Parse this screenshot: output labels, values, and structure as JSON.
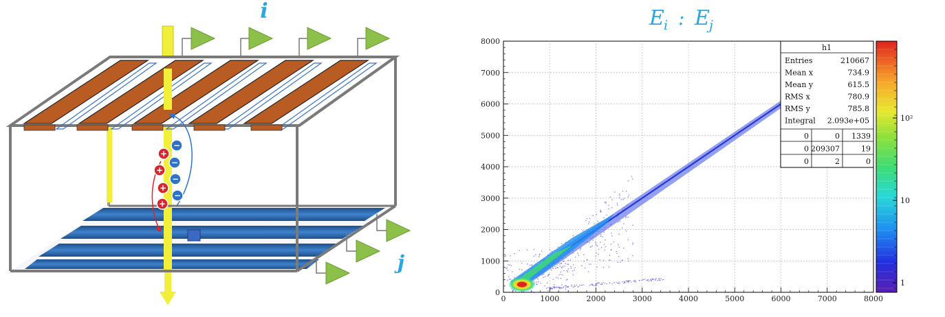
{
  "detector": {
    "label_i": "i",
    "label_j": "j",
    "colors": {
      "frame": "#7a7a7a",
      "top_strip": "#b85c24",
      "bottom_strip": "#2f6bb4",
      "beam": "#f2ef3a",
      "amplifier": "#8dc04a",
      "hole": "#d8262c",
      "electron": "#2f73c8"
    },
    "charges": {
      "plus": "+",
      "minus": "−"
    }
  },
  "plot": {
    "title": "E_i : E_j",
    "title_main_1": "E",
    "title_sub_1": "i",
    "title_sep": ":",
    "title_main_2": "E",
    "title_sub_2": "j",
    "stats": {
      "name": "h1",
      "rows": [
        {
          "label": "Entries",
          "value": "210667"
        },
        {
          "label": "Mean x",
          "value": "734.9"
        },
        {
          "label": "Mean y",
          "value": "615.5"
        },
        {
          "label": "RMS x",
          "value": "780.9"
        },
        {
          "label": "RMS y",
          "value": "785.8"
        },
        {
          "label": "Integral",
          "value": "2.093e+05"
        }
      ],
      "grid": [
        [
          "0",
          "0",
          "1339"
        ],
        [
          "0",
          "209307",
          "19"
        ],
        [
          "0",
          "2",
          "0"
        ]
      ]
    },
    "colorbar": {
      "ticks": [
        "10²",
        "10",
        "1"
      ]
    }
  },
  "chart_data": {
    "type": "heatmap",
    "title": "E_i : E_j",
    "xlim": [
      0,
      8000
    ],
    "ylim": [
      0,
      8000
    ],
    "x_ticks": [
      "0",
      "1000",
      "2000",
      "3000",
      "4000",
      "5000",
      "6000",
      "7000",
      "8000"
    ],
    "y_ticks": [
      "0",
      "1000",
      "2000",
      "3000",
      "4000",
      "5000",
      "6000",
      "7000",
      "8000"
    ],
    "grid": true,
    "colorbar": {
      "scale": "log",
      "range": [
        1,
        1000
      ],
      "ticks": [
        "1",
        "10",
        "10²"
      ]
    },
    "main_band": {
      "from": [
        250,
        250
      ],
      "to": [
        7900,
        7900
      ]
    },
    "secondary_band": {
      "from": [
        1000,
        150
      ],
      "to": [
        3500,
        450
      ]
    },
    "hotspot": {
      "x": 400,
      "y": 250
    }
  }
}
